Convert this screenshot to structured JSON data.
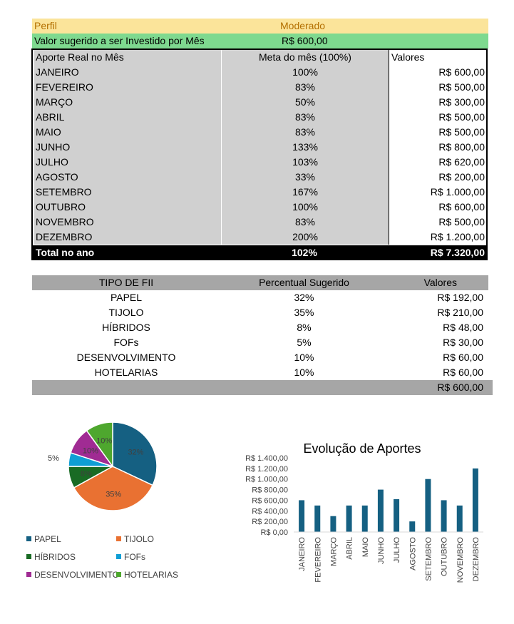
{
  "profile": {
    "label": "Perfil",
    "value": "Moderado"
  },
  "suggested": {
    "label": "Valor sugerido a ser  Investido por Mês",
    "value": "R$ 600,00"
  },
  "monthly_table": {
    "headers": [
      "Aporte Real no Mês",
      "Meta do mês (100%)",
      "Valores"
    ],
    "rows": [
      {
        "month": "JANEIRO",
        "pct": "100%",
        "value": "R$ 600,00"
      },
      {
        "month": "FEVEREIRO",
        "pct": "83%",
        "value": "R$ 500,00"
      },
      {
        "month": "MARÇO",
        "pct": "50%",
        "value": "R$ 300,00"
      },
      {
        "month": "ABRIL",
        "pct": "83%",
        "value": "R$ 500,00"
      },
      {
        "month": "MAIO",
        "pct": "83%",
        "value": "R$ 500,00"
      },
      {
        "month": "JUNHO",
        "pct": "133%",
        "value": "R$ 800,00"
      },
      {
        "month": "JULHO",
        "pct": "103%",
        "value": "R$ 620,00"
      },
      {
        "month": "AGOSTO",
        "pct": "33%",
        "value": "R$ 200,00"
      },
      {
        "month": "SETEMBRO",
        "pct": "167%",
        "value": "R$ 1.000,00"
      },
      {
        "month": "OUTUBRO",
        "pct": "100%",
        "value": "R$ 600,00"
      },
      {
        "month": "NOVEMBRO",
        "pct": "83%",
        "value": "R$ 500,00"
      },
      {
        "month": "DEZEMBRO",
        "pct": "200%",
        "value": "R$ 1.200,00"
      }
    ],
    "total": {
      "label": "Total no ano",
      "pct": "102%",
      "value": "R$ 7.320,00"
    }
  },
  "fii_table": {
    "headers": [
      "TIPO DE FII",
      "Percentual Sugerido",
      "Valores"
    ],
    "rows": [
      {
        "type": "PAPEL",
        "pct": "32%",
        "value": "R$ 192,00"
      },
      {
        "type": "TIJOLO",
        "pct": "35%",
        "value": "R$ 210,00"
      },
      {
        "type": "HÍBRIDOS",
        "pct": "8%",
        "value": "R$ 48,00"
      },
      {
        "type": "FOFs",
        "pct": "5%",
        "value": "R$ 30,00"
      },
      {
        "type": "DESENVOLVIMENTO",
        "pct": "10%",
        "value": "R$ 60,00"
      },
      {
        "type": "HOTELARIAS",
        "pct": "10%",
        "value": "R$ 60,00"
      }
    ],
    "total": "R$ 600,00"
  },
  "chart_data": [
    {
      "type": "pie",
      "title": "",
      "categories": [
        "PAPEL",
        "TIJOLO",
        "HÍBRIDOS",
        "FOFs",
        "DESENVOLVIMENTO",
        "HOTELARIAS"
      ],
      "values": [
        32,
        35,
        8,
        5,
        10,
        10
      ],
      "labels": [
        "32%",
        "35%",
        "8%",
        "5%",
        "10%",
        "10%"
      ],
      "colors": [
        "#156082",
        "#e97132",
        "#196b24",
        "#0f9ed5",
        "#a02b93",
        "#4ea72e"
      ],
      "legend": "bottom"
    },
    {
      "type": "bar",
      "title": "Evolução de Aportes",
      "categories": [
        "JANEIRO",
        "FEVEREIRO",
        "MARÇO",
        "ABRIL",
        "MAIO",
        "JUNHO",
        "JULHO",
        "AGOSTO",
        "SETEMBRO",
        "OUTUBRO",
        "NOVEMBRO",
        "DEZEMBRO"
      ],
      "values": [
        600,
        500,
        300,
        500,
        500,
        800,
        620,
        200,
        1000,
        600,
        500,
        1200
      ],
      "ylim": [
        0,
        1400
      ],
      "yticks": [
        0,
        200,
        400,
        600,
        800,
        1000,
        1200,
        1400
      ],
      "ytick_labels": [
        "R$ 0,00",
        "R$ 200,00",
        "R$ 400,00",
        "R$ 600,00",
        "R$ 800,00",
        "R$ 1.000,00",
        "R$ 1.200,00",
        "R$ 1.400,00"
      ],
      "color": "#156082",
      "grid": false,
      "xlabel": "",
      "ylabel": ""
    }
  ]
}
